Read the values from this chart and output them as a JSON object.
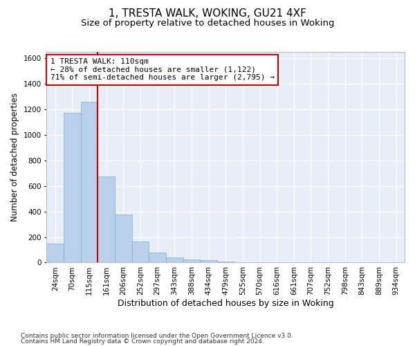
{
  "title": "1, TRESTA WALK, WOKING, GU21 4XF",
  "subtitle": "Size of property relative to detached houses in Woking",
  "xlabel": "Distribution of detached houses by size in Woking",
  "ylabel": "Number of detached properties",
  "bar_color": "#b8d0ea",
  "bar_edge_color": "#7aafd4",
  "background_color": "#e8eef8",
  "grid_color": "#ffffff",
  "vline_color": "#cc0000",
  "annotation_text": "1 TRESTA WALK: 110sqm\n← 28% of detached houses are smaller (1,122)\n71% of semi-detached houses are larger (2,795) →",
  "annotation_box_color": "#cc0000",
  "categories": [
    "24sqm",
    "70sqm",
    "115sqm",
    "161sqm",
    "206sqm",
    "252sqm",
    "297sqm",
    "343sqm",
    "388sqm",
    "434sqm",
    "479sqm",
    "525sqm",
    "570sqm",
    "616sqm",
    "661sqm",
    "707sqm",
    "752sqm",
    "798sqm",
    "843sqm",
    "889sqm",
    "934sqm"
  ],
  "values": [
    150,
    1175,
    1260,
    675,
    375,
    165,
    80,
    40,
    25,
    20,
    10,
    0,
    0,
    0,
    0,
    0,
    0,
    0,
    0,
    0,
    0
  ],
  "ylim": [
    0,
    1650
  ],
  "yticks": [
    0,
    200,
    400,
    600,
    800,
    1000,
    1200,
    1400,
    1600
  ],
  "footer_line1": "Contains HM Land Registry data © Crown copyright and database right 2024.",
  "footer_line2": "Contains public sector information licensed under the Open Government Licence v3.0.",
  "title_fontsize": 11,
  "subtitle_fontsize": 9.5,
  "xlabel_fontsize": 9,
  "ylabel_fontsize": 8.5,
  "tick_fontsize": 7.5,
  "annotation_fontsize": 8,
  "footer_fontsize": 6.5,
  "vline_bar_index": 2.5
}
